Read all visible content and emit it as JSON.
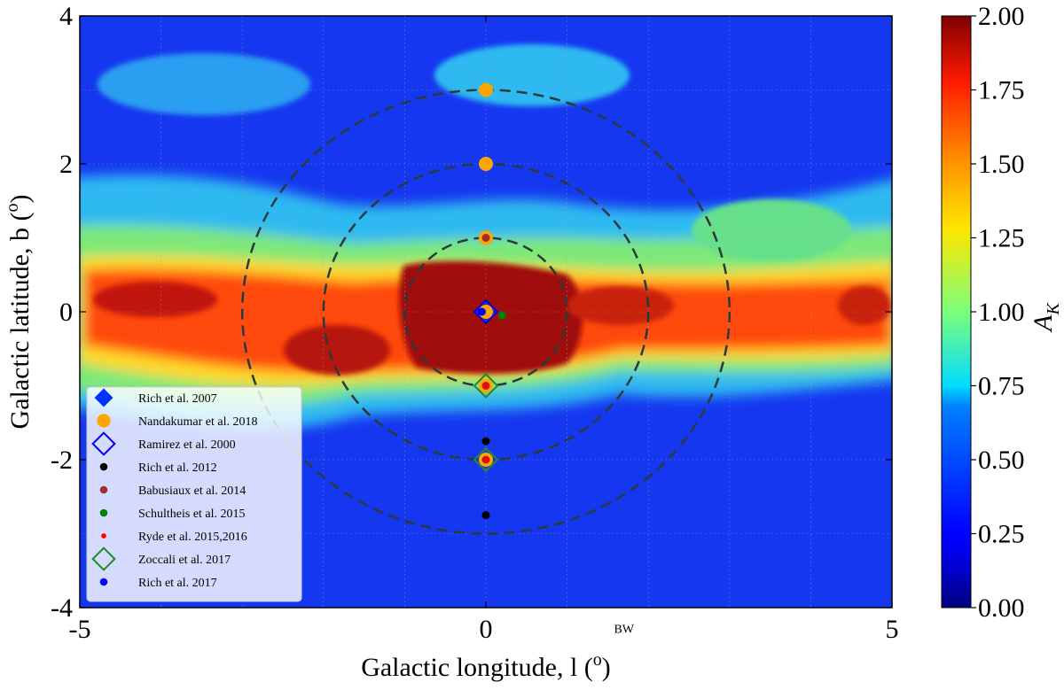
{
  "chart_data": {
    "type": "heatmap",
    "title": "",
    "xlabel_base": "Galactic longitude, l (",
    "xlabel_sup": "o",
    "xlabel_end": ")",
    "ylabel_base": "Galactic latitude, b (",
    "ylabel_sup": "o",
    "ylabel_end": ")",
    "xlim": [
      -5,
      5
    ],
    "ylim": [
      -4,
      4
    ],
    "xticks": [
      -5,
      0,
      5
    ],
    "yticks": [
      -4,
      -2,
      0,
      2,
      4
    ],
    "x_tick_labels": [
      "-5",
      "0",
      "5"
    ],
    "y_tick_labels": [
      "-4",
      "-2",
      "0",
      "2",
      "4"
    ],
    "annotation": {
      "text": "BW",
      "x": 1.7,
      "y": -4.2
    },
    "colorbar": {
      "label_base": "A",
      "label_sub": "K",
      "range": [
        0,
        2
      ],
      "ticks": [
        0,
        0.25,
        0.5,
        0.75,
        1.0,
        1.25,
        1.5,
        1.75,
        2.0
      ],
      "tick_labels": [
        "0.00",
        "0.25",
        "0.50",
        "0.75",
        "1.00",
        "1.25",
        "1.50",
        "1.75",
        "2.00"
      ],
      "colormap": "jet"
    },
    "circles": [
      {
        "center": [
          0,
          0
        ],
        "radius": 1
      },
      {
        "center": [
          0,
          0
        ],
        "radius": 2
      },
      {
        "center": [
          0,
          0
        ],
        "radius": 3
      }
    ],
    "series": [
      {
        "name": "Rich et al. 2007",
        "marker": "diamond-filled",
        "color": "#0033ff",
        "points": [
          [
            0,
            0
          ]
        ]
      },
      {
        "name": "Nandakumar et al. 2018",
        "marker": "circle",
        "color": "#ffa500",
        "points": [
          [
            0,
            3
          ],
          [
            0,
            2
          ],
          [
            0,
            1
          ],
          [
            0,
            0
          ],
          [
            0,
            -1
          ],
          [
            0,
            -2
          ]
        ]
      },
      {
        "name": "Ramirez et al. 2000",
        "marker": "diamond-open",
        "color": "#0000ee",
        "points": [
          [
            0,
            0
          ]
        ]
      },
      {
        "name": "Rich et al. 2012",
        "marker": "dot",
        "color": "#000000",
        "points": [
          [
            0,
            -1.75
          ],
          [
            0,
            -2.75
          ]
        ]
      },
      {
        "name": "Babusiaux et al. 2014",
        "marker": "dot",
        "color": "#a52a2a",
        "points": [
          [
            0,
            1
          ],
          [
            0,
            -1
          ],
          [
            0,
            -2
          ]
        ]
      },
      {
        "name": "Schultheis et al. 2015",
        "marker": "dot",
        "color": "#008000",
        "points": [
          [
            0.2,
            -0.05
          ]
        ]
      },
      {
        "name": "Ryde et al. 2015,2016",
        "marker": "dot-small",
        "color": "#ff0000",
        "points": [
          [
            0,
            -1
          ],
          [
            0,
            -2
          ]
        ]
      },
      {
        "name": "Zoccali et al. 2017",
        "marker": "diamond-open",
        "color": "#228b22",
        "points": [
          [
            0,
            -1
          ],
          [
            0,
            -2
          ]
        ]
      },
      {
        "name": "Rich et al. 2017",
        "marker": "dot",
        "color": "#0000ff",
        "points": [
          [
            -0.05,
            0
          ]
        ]
      }
    ],
    "legend_placement": "lower-left"
  }
}
